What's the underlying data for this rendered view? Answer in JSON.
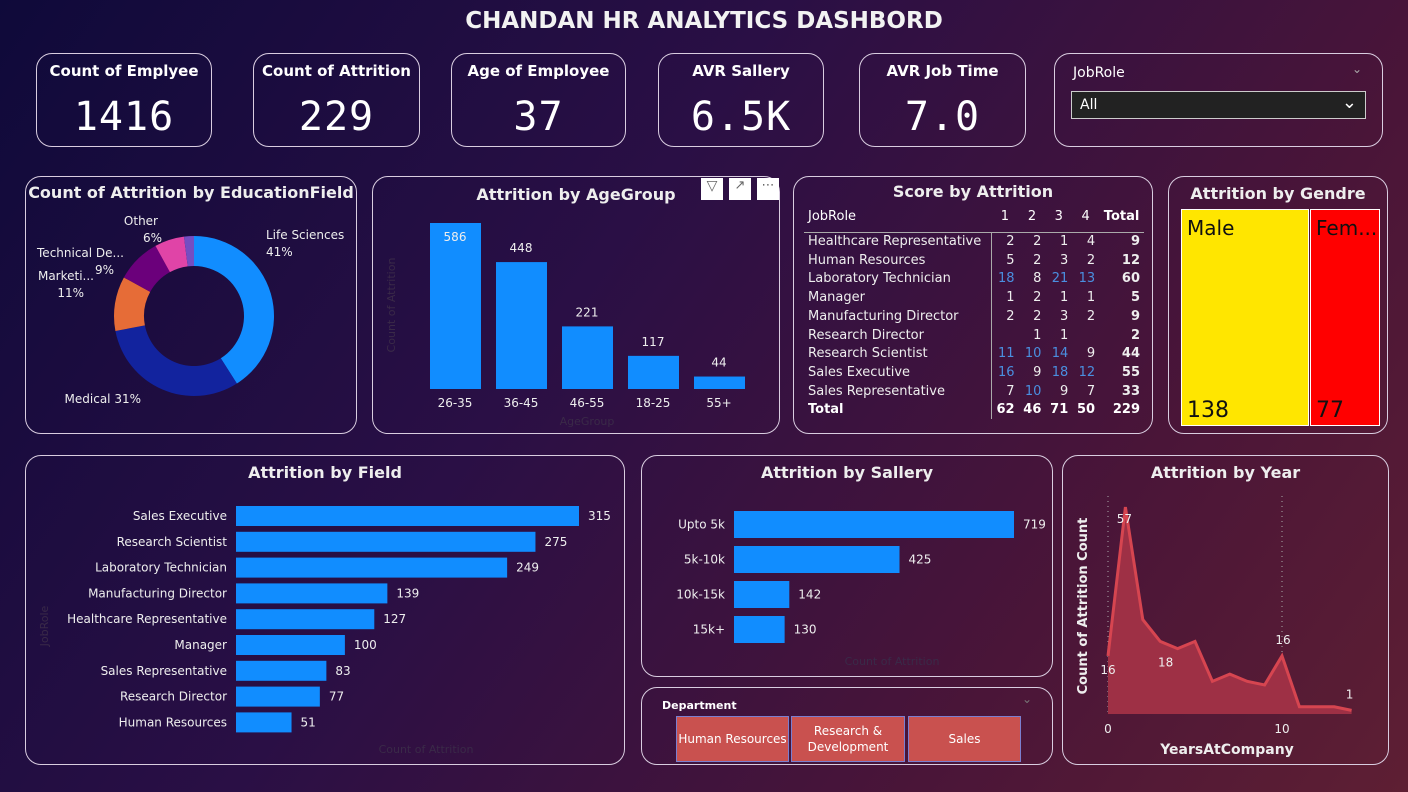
{
  "header": {
    "title": "CHANDAN HR ANALYTICS DASHBORD"
  },
  "kpis": [
    {
      "label": "Count of Emplyee",
      "value": "1416"
    },
    {
      "label": "Count of Attrition",
      "value": "229"
    },
    {
      "label": "Age of Employee",
      "value": "37"
    },
    {
      "label": "AVR Sallery",
      "value": "6.5K"
    },
    {
      "label": "AVR Job Time",
      "value": "7.0"
    }
  ],
  "jobrole_slicer": {
    "label": "JobRole",
    "selected": "All"
  },
  "colors": {
    "bar": "#118dff",
    "male": "#ffe600",
    "female": "#ff0000",
    "area": "#d64550",
    "dept_button": "#c9514f"
  },
  "chart_data": [
    {
      "type": "pie",
      "title": "Count of Attrition by EducationField",
      "donut": true,
      "slices": [
        {
          "label": "Life Sciences",
          "pct": 41,
          "color": "#118dff"
        },
        {
          "label": "Medical",
          "pct": 31,
          "color": "#12239e"
        },
        {
          "label": "Marketi...",
          "pct": 11,
          "color": "#e66c37"
        },
        {
          "label": "Technical De...",
          "pct": 9,
          "color": "#6b007b"
        },
        {
          "label": "Other",
          "pct": 6,
          "color": "#e044a7"
        },
        {
          "label": "",
          "pct": 2,
          "color": "#744ec2"
        }
      ]
    },
    {
      "type": "bar",
      "title": "Attrition by AgeGroup",
      "xlabel": "AgeGroup",
      "ylabel": "Count of Attrition",
      "categories": [
        "26-35",
        "36-45",
        "46-55",
        "18-25",
        "55+"
      ],
      "values": [
        586,
        448,
        221,
        117,
        44
      ]
    },
    {
      "type": "table",
      "title": "Score by Attrition",
      "columns": [
        "JobRole",
        "1",
        "2",
        "3",
        "4",
        "Total"
      ],
      "rows": [
        [
          "Healthcare Representative",
          "2",
          "2",
          "1",
          "4",
          "9"
        ],
        [
          "Human Resources",
          "5",
          "2",
          "3",
          "2",
          "12"
        ],
        [
          "Laboratory Technician",
          "18",
          "8",
          "21",
          "13",
          "60"
        ],
        [
          "Manager",
          "1",
          "2",
          "1",
          "1",
          "5"
        ],
        [
          "Manufacturing Director",
          "2",
          "2",
          "3",
          "2",
          "9"
        ],
        [
          "Research Director",
          "",
          "1",
          "1",
          "",
          "2"
        ],
        [
          "Research Scientist",
          "11",
          "10",
          "14",
          "9",
          "44"
        ],
        [
          "Sales Executive",
          "16",
          "9",
          "18",
          "12",
          "55"
        ],
        [
          "Sales Representative",
          "7",
          "10",
          "9",
          "7",
          "33"
        ]
      ],
      "total": [
        "Total",
        "62",
        "46",
        "71",
        "50",
        "229"
      ]
    },
    {
      "type": "treemap",
      "title": "Attrition by Gendre",
      "items": [
        {
          "label": "Male",
          "value": 138
        },
        {
          "label": "Fem...",
          "value": 77
        }
      ]
    },
    {
      "type": "bar",
      "orientation": "horizontal",
      "title": "Attrition by Field",
      "xlabel": "Count of Attrition",
      "ylabel": "JobRole",
      "categories": [
        "Sales Executive",
        "Research Scientist",
        "Laboratory Technician",
        "Manufacturing Director",
        "Healthcare Representative",
        "Manager",
        "Sales Representative",
        "Research Director",
        "Human Resources"
      ],
      "values": [
        315,
        275,
        249,
        139,
        127,
        100,
        83,
        77,
        51
      ]
    },
    {
      "type": "bar",
      "orientation": "horizontal",
      "title": "Attrition by Sallery",
      "xlabel": "Count of Attrition",
      "categories": [
        "Upto 5k",
        "5k-10k",
        "10k-15k",
        "15k+"
      ],
      "values": [
        719,
        425,
        142,
        130
      ]
    },
    {
      "type": "area",
      "title": "Attrition by Year",
      "xlabel": "YearsAtCompany",
      "ylabel": "Count of Attrition Count",
      "x": [
        0,
        1,
        2,
        3,
        4,
        5,
        6,
        7,
        8,
        9,
        10,
        11,
        12,
        13,
        14
      ],
      "y": [
        16,
        57,
        26,
        20,
        18,
        20,
        9,
        11,
        9,
        8,
        16,
        2,
        2,
        2,
        1
      ],
      "labeled": [
        0,
        1,
        4,
        10,
        14
      ],
      "xticks": [
        0,
        10
      ]
    }
  ],
  "department_slicer": {
    "label": "Department",
    "options": [
      "Human Resources",
      "Research & Development",
      "Sales"
    ]
  },
  "visual_header": {
    "filter": "filter-icon",
    "focus": "focus-mode-icon",
    "more": "more-options-icon"
  }
}
